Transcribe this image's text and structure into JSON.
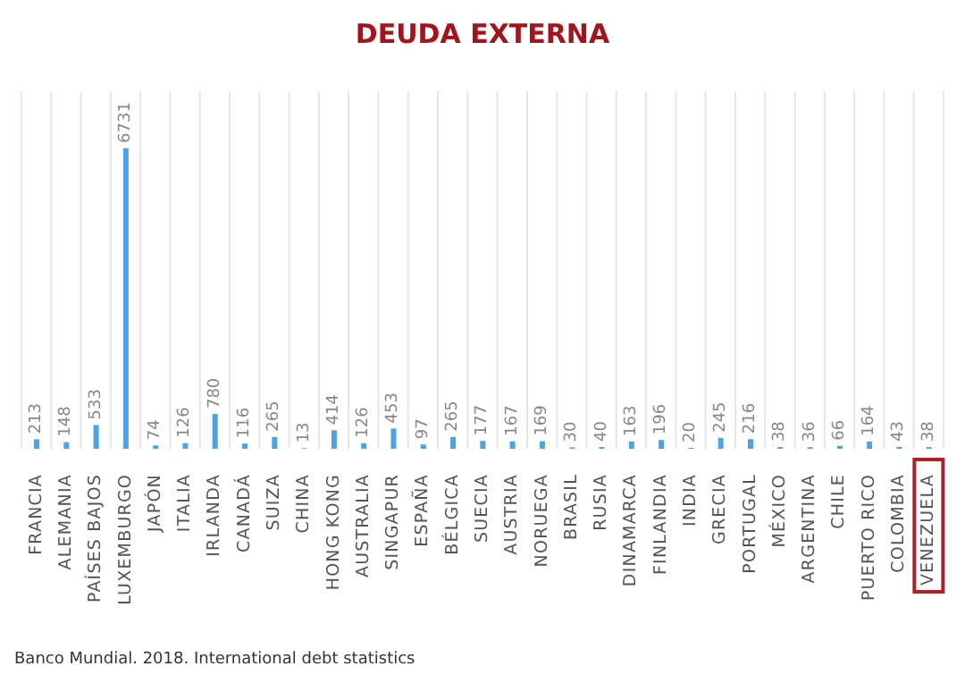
{
  "chart_data": {
    "type": "bar",
    "title": "DEUDA EXTERNA",
    "categories": [
      "FRANCIA",
      "ALEMANIA",
      "PAÍSES BAJOS",
      "LUXEMBURGO",
      "JAPÓN",
      "ITALIA",
      "IRLANDA",
      "CANADÁ",
      "SUIZA",
      "CHINA",
      "HONG KONG",
      "AUSTRALIA",
      "SINGAPUR",
      "ESPAÑA",
      "BÉLGICA",
      "SUECIA",
      "AUSTRIA",
      "NORUEGA",
      "BRASIL",
      "RUSIA",
      "DINAMARCA",
      "FINLANDIA",
      "INDIA",
      "GRECIA",
      "PORTUGAL",
      "MÉXICO",
      "ARGENTINA",
      "CHILE",
      "PUERTO RICO",
      "COLOMBIA",
      "VENEZUELA"
    ],
    "values": [
      213,
      148,
      533,
      6731,
      74,
      126,
      780,
      116,
      265,
      13,
      414,
      126,
      453,
      97,
      265,
      177,
      167,
      169,
      30,
      40,
      163,
      196,
      20,
      245,
      216,
      38,
      36,
      66,
      164,
      43,
      38
    ],
    "color": "#4ea3e3",
    "data_labels": true,
    "grid": "x",
    "annotations": [
      "Banco Mundial. 2018. International debt statistics"
    ]
  }
}
